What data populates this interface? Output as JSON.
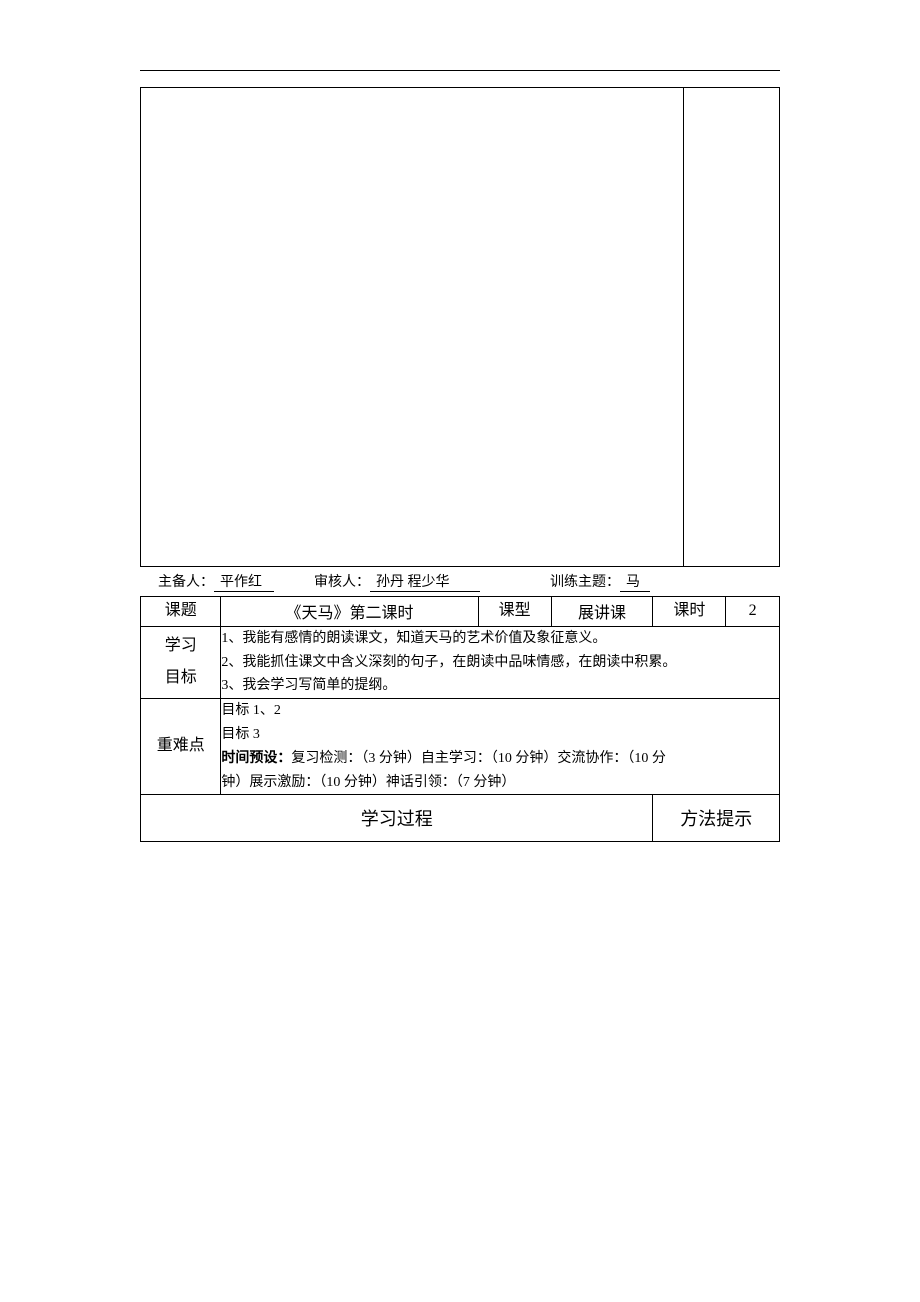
{
  "meta": {
    "preparer_label": "主备人：",
    "preparer_value": "平作红",
    "reviewer_label": "审核人：",
    "reviewer_value": "孙丹  程少华",
    "topic_label": "训练主题：",
    "topic_value": "马"
  },
  "row1": {
    "col1_label": "课题",
    "col2_value": "《天马》第二课时",
    "col3_label": "课型",
    "col4_value": "展讲课",
    "col5_label": "课时",
    "col6_value": "2"
  },
  "row2": {
    "label_line1": "学习",
    "label_line2": "目标",
    "content_line1": "1、我能有感情的朗读课文，知道天马的艺术价值及象征意义。",
    "content_line2": "2、我能抓住课文中含义深刻的句子，在朗读中品味情感，在朗读中积累。",
    "content_line3": "3、我会学习写简单的提纲。"
  },
  "row3": {
    "label": "重难点",
    "content_line1": "目标 1、2",
    "content_line2": "目标 3",
    "time_label": "时间预设：",
    "time_content_a": "复习检测：（3 分钟）自主学习：（10 分钟）交流协作：（10 分",
    "time_content_b": "钟）展示激励：（10 分钟）神话引领：（7 分钟）"
  },
  "row4": {
    "left": "学习过程",
    "right": "方法提示"
  },
  "layout": {
    "col_widths": {
      "c1": 75,
      "c2": 240,
      "c3": 68,
      "c4": 95,
      "c5": 68,
      "c6": 50
    },
    "colors": {
      "text": "#000000",
      "border": "#000000",
      "background": "#ffffff"
    }
  }
}
